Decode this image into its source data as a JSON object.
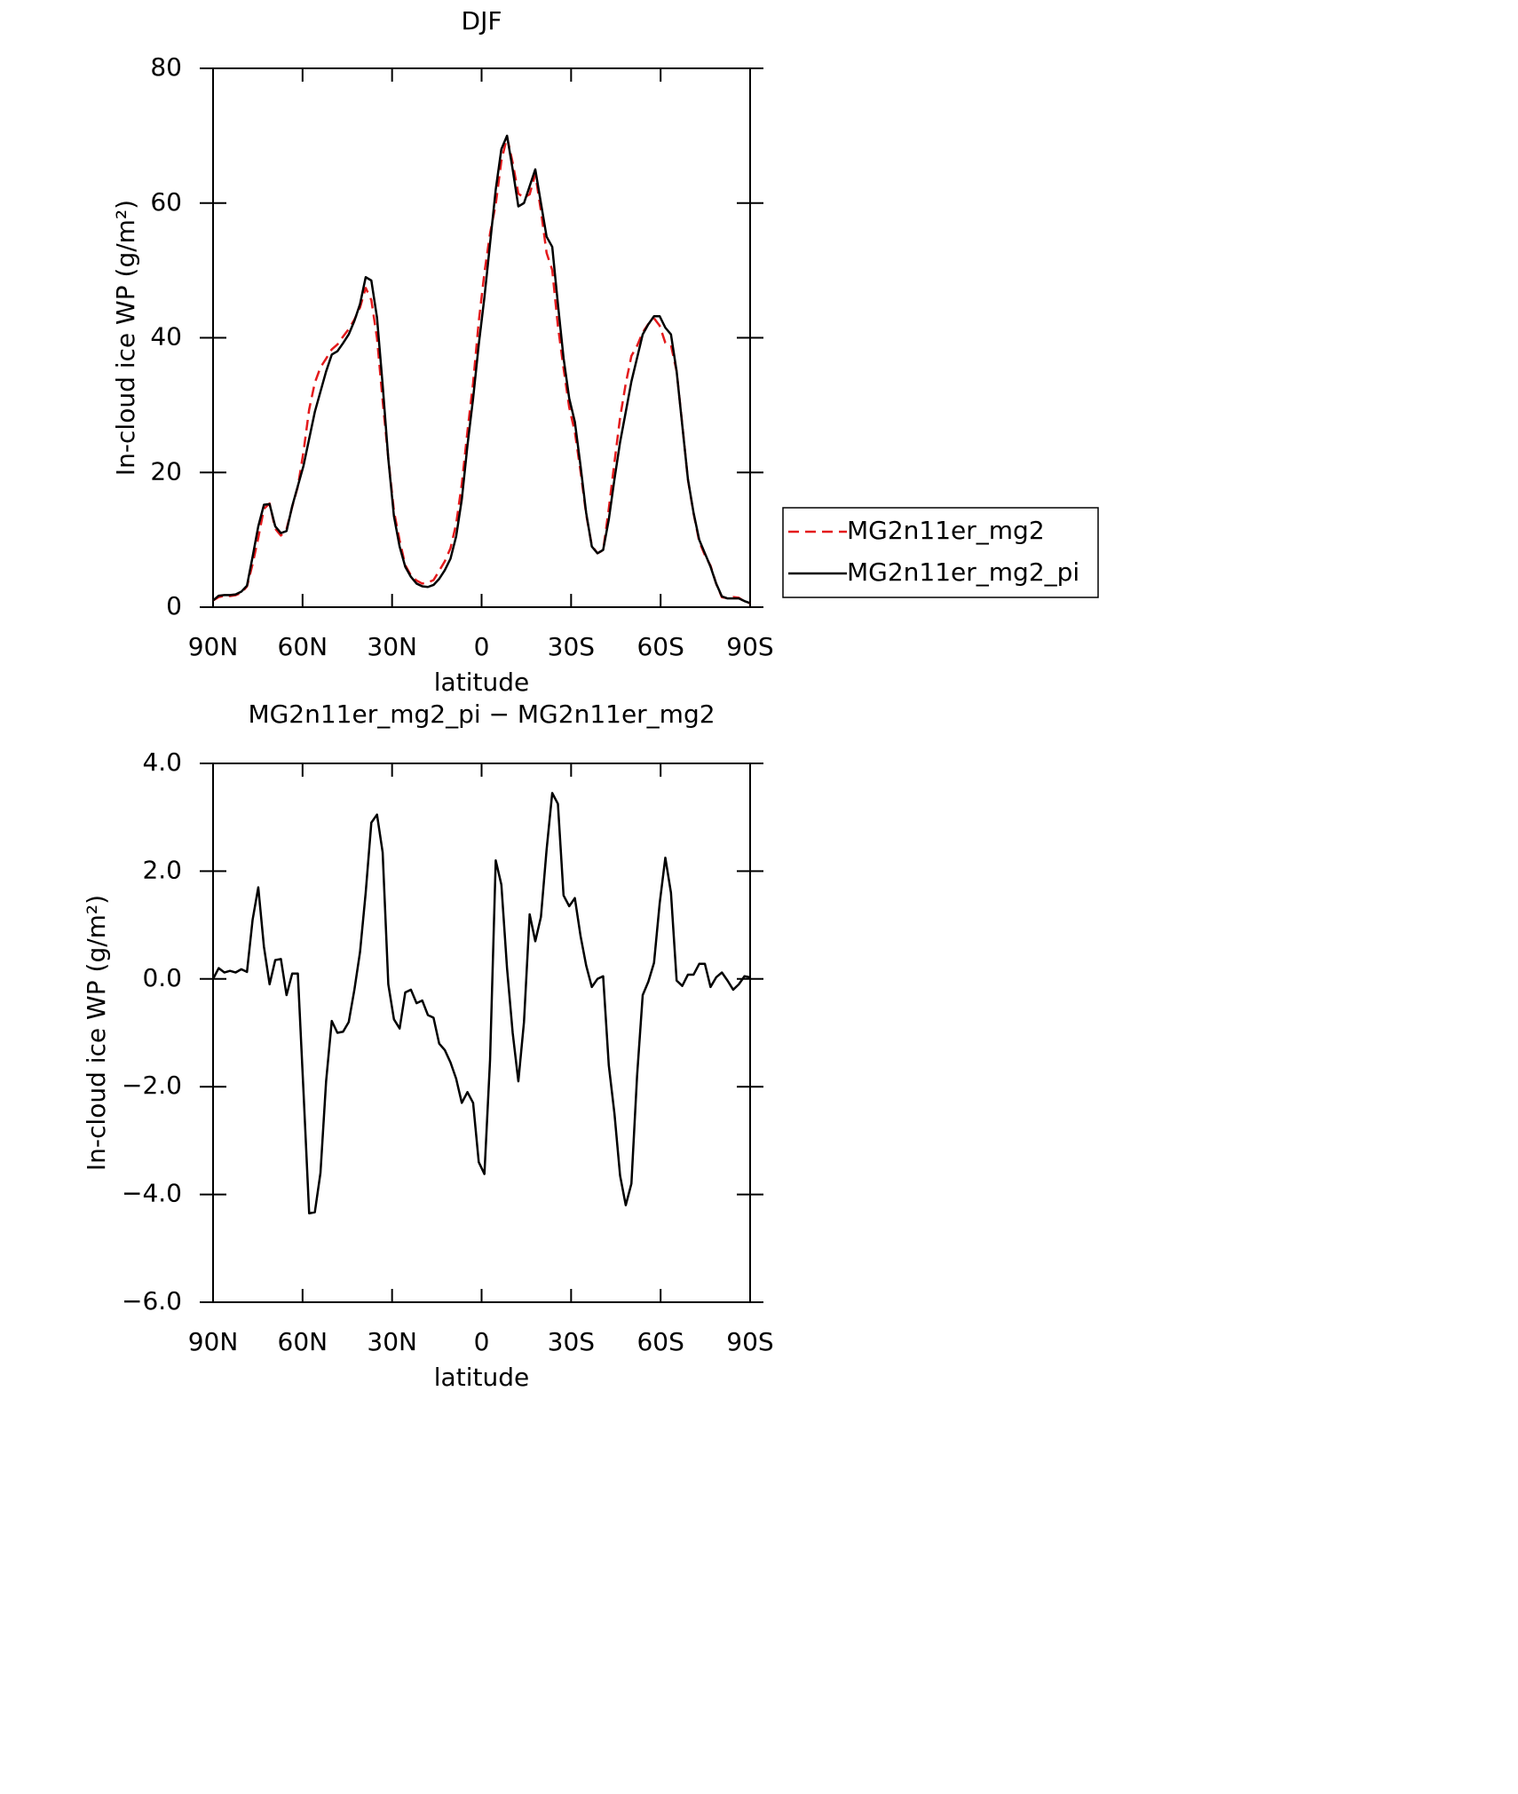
{
  "chart_data": [
    {
      "type": "line",
      "title": "DJF",
      "xlabel": "latitude",
      "ylabel": "In-cloud ice WP (g/m²)",
      "xlim": [
        90,
        -90
      ],
      "xticks": [
        {
          "value": 90,
          "label": "90N"
        },
        {
          "value": 60,
          "label": "60N"
        },
        {
          "value": 30,
          "label": "30N"
        },
        0,
        {
          "value": -30,
          "label": "30S"
        },
        {
          "value": -60,
          "label": "60S"
        },
        {
          "value": -90,
          "label": "90S"
        }
      ],
      "ylim": [
        0,
        80
      ],
      "yticks": [
        0,
        20,
        40,
        60,
        80
      ],
      "legend": "right",
      "x": [
        90,
        88.11,
        86.21,
        84.32,
        82.42,
        80.53,
        78.63,
        76.74,
        74.84,
        72.95,
        71.05,
        69.16,
        67.26,
        65.37,
        63.47,
        61.58,
        59.68,
        57.79,
        55.89,
        54.0,
        52.11,
        50.21,
        48.32,
        46.42,
        44.53,
        42.63,
        40.74,
        38.84,
        36.95,
        35.05,
        33.16,
        31.26,
        29.37,
        27.47,
        25.58,
        23.68,
        21.79,
        19.89,
        18.0,
        16.11,
        14.21,
        12.32,
        10.42,
        8.53,
        6.63,
        4.74,
        2.84,
        0.95,
        -0.95,
        -2.84,
        -4.74,
        -6.63,
        -8.53,
        -10.42,
        -12.32,
        -14.21,
        -16.11,
        -18.0,
        -19.89,
        -21.79,
        -23.68,
        -25.58,
        -27.47,
        -29.37,
        -31.26,
        -33.16,
        -35.05,
        -36.95,
        -38.84,
        -40.74,
        -42.63,
        -44.53,
        -46.42,
        -48.32,
        -50.21,
        -52.11,
        -54.0,
        -55.89,
        -57.79,
        -59.68,
        -61.58,
        -63.47,
        -65.37,
        -67.26,
        -69.16,
        -71.05,
        -72.95,
        -74.84,
        -76.74,
        -78.63,
        -80.53,
        -82.42,
        -84.32,
        -86.21,
        -88.11,
        -90
      ],
      "series": [
        {
          "name": "MG2n11er_mg2",
          "color": "#e41a1c",
          "dash": true,
          "values": [
            1.0,
            1.5,
            1.68,
            1.65,
            1.78,
            2.12,
            3.07,
            6.4,
            10.3,
            14.6,
            15.4,
            11.65,
            10.63,
            11.6,
            14.9,
            17.9,
            23.1,
            29.35,
            33.33,
            35.6,
            36.9,
            38.28,
            39.0,
            40.18,
            41.3,
            42.7,
            44.5,
            47.4,
            45.6,
            39.95,
            30.65,
            22.1,
            14.25,
            9.92,
            6.25,
            4.7,
            3.95,
            3.5,
            3.67,
            4.02,
            5.4,
            6.82,
            8.75,
            12.35,
            18.3,
            26.1,
            33.3,
            42.4,
            49.62,
            55.5,
            59.8,
            66.25,
            69.8,
            66.0,
            61.4,
            60.8,
            61.3,
            64.3,
            58.85,
            52.6,
            50.05,
            41.75,
            35.45,
            29.65,
            26.0,
            20.2,
            13.75,
            9.15,
            8.0,
            8.45,
            14.6,
            21.5,
            28.15,
            33.2,
            37.3,
            38.8,
            40.8,
            42.05,
            42.9,
            41.8,
            39.25,
            38.9,
            35.03,
            27.13,
            18.92,
            13.92,
            9.72,
            7.72,
            6.15,
            3.47,
            1.48,
            1.33,
            1.5,
            1.4,
            0.85,
            0.57
          ]
        },
        {
          "name": "MG2n11er_mg2_pi",
          "color": "#000000",
          "dash": false,
          "values": [
            1.0,
            1.7,
            1.8,
            1.8,
            1.9,
            2.3,
            3.2,
            7.5,
            12,
            15.2,
            15.3,
            12,
            11,
            11.3,
            15,
            18,
            21,
            25,
            29,
            32,
            35,
            37.5,
            38,
            39.2,
            40.5,
            42.5,
            45,
            49,
            48.5,
            43,
            33,
            22,
            13.5,
            9,
            6,
            4.5,
            3.5,
            3.1,
            3.0,
            3.3,
            4.2,
            5.5,
            7.2,
            10.5,
            16,
            24,
            31,
            39,
            46,
            54,
            62,
            68,
            70,
            65,
            59.5,
            60,
            62.5,
            65,
            60,
            55,
            53.5,
            45,
            37,
            31,
            27.5,
            21,
            14,
            9,
            8,
            8.5,
            13,
            19,
            24.5,
            29,
            33.5,
            37,
            40.5,
            42,
            43.2,
            43.2,
            41.5,
            40.5,
            35,
            27,
            19,
            14,
            10,
            8,
            6,
            3.5,
            1.6,
            1.3,
            1.3,
            1.3,
            0.9,
            0.6
          ]
        }
      ]
    },
    {
      "type": "line",
      "title": "MG2n11er_mg2_pi − MG2n11er_mg2",
      "xlabel": "latitude",
      "ylabel": "In-cloud ice WP (g/m²)",
      "xlim": [
        90,
        -90
      ],
      "xticks": [
        {
          "value": 90,
          "label": "90N"
        },
        {
          "value": 60,
          "label": "60N"
        },
        {
          "value": 30,
          "label": "30N"
        },
        0,
        {
          "value": -30,
          "label": "30S"
        },
        {
          "value": -60,
          "label": "60S"
        },
        {
          "value": -90,
          "label": "90S"
        }
      ],
      "ylim": [
        -6,
        4
      ],
      "yticks": [
        {
          "value": -6,
          "label": "−6.0"
        },
        {
          "value": -4,
          "label": "−4.0"
        },
        {
          "value": -2,
          "label": "−2.0"
        },
        {
          "value": 0,
          "label": "0.0"
        },
        {
          "value": 2,
          "label": "2.0"
        },
        {
          "value": 4,
          "label": "4.0"
        }
      ],
      "x": [
        90,
        88.11,
        86.21,
        84.32,
        82.42,
        80.53,
        78.63,
        76.74,
        74.84,
        72.95,
        71.05,
        69.16,
        67.26,
        65.37,
        63.47,
        61.58,
        59.68,
        57.79,
        55.89,
        54.0,
        52.11,
        50.21,
        48.32,
        46.42,
        44.53,
        42.63,
        40.74,
        38.84,
        36.95,
        35.05,
        33.16,
        31.26,
        29.37,
        27.47,
        25.58,
        23.68,
        21.79,
        19.89,
        18.0,
        16.11,
        14.21,
        12.32,
        10.42,
        8.53,
        6.63,
        4.74,
        2.84,
        0.95,
        -0.95,
        -2.84,
        -4.74,
        -6.63,
        -8.53,
        -10.42,
        -12.32,
        -14.21,
        -16.11,
        -18.0,
        -19.89,
        -21.79,
        -23.68,
        -25.58,
        -27.47,
        -29.37,
        -31.26,
        -33.16,
        -35.05,
        -36.95,
        -38.84,
        -40.74,
        -42.63,
        -44.53,
        -46.42,
        -48.32,
        -50.21,
        -52.11,
        -54.0,
        -55.89,
        -57.79,
        -59.68,
        -61.58,
        -63.47,
        -65.37,
        -67.26,
        -69.16,
        -71.05,
        -72.95,
        -74.84,
        -76.74,
        -78.63,
        -80.53,
        -82.42,
        -84.32,
        -86.21,
        -88.11,
        -90
      ],
      "series": [
        {
          "color": "#000000",
          "dash": false,
          "values": [
            0.0,
            0.2,
            0.12,
            0.15,
            0.12,
            0.18,
            0.13,
            1.1,
            1.7,
            0.6,
            -0.1,
            0.35,
            0.37,
            -0.3,
            0.1,
            0.1,
            -2.1,
            -4.35,
            -4.33,
            -3.6,
            -1.9,
            -0.78,
            -1.0,
            -0.98,
            -0.8,
            -0.2,
            0.5,
            1.6,
            2.9,
            3.05,
            2.35,
            -0.1,
            -0.75,
            -0.92,
            -0.25,
            -0.2,
            -0.45,
            -0.4,
            -0.67,
            -0.72,
            -1.2,
            -1.32,
            -1.55,
            -1.85,
            -2.3,
            -2.1,
            -2.3,
            -3.4,
            -3.62,
            -1.5,
            2.2,
            1.75,
            0.2,
            -1.0,
            -1.9,
            -0.8,
            1.2,
            0.7,
            1.15,
            2.4,
            3.45,
            3.25,
            1.55,
            1.35,
            1.5,
            0.8,
            0.25,
            -0.15,
            0.0,
            0.05,
            -1.6,
            -2.5,
            -3.65,
            -4.2,
            -3.8,
            -1.8,
            -0.3,
            -0.05,
            0.3,
            1.4,
            2.25,
            1.6,
            -0.03,
            -0.13,
            0.08,
            0.08,
            0.28,
            0.28,
            -0.15,
            0.03,
            0.12,
            -0.03,
            -0.2,
            -0.1,
            0.05,
            0.03
          ]
        }
      ]
    }
  ]
}
